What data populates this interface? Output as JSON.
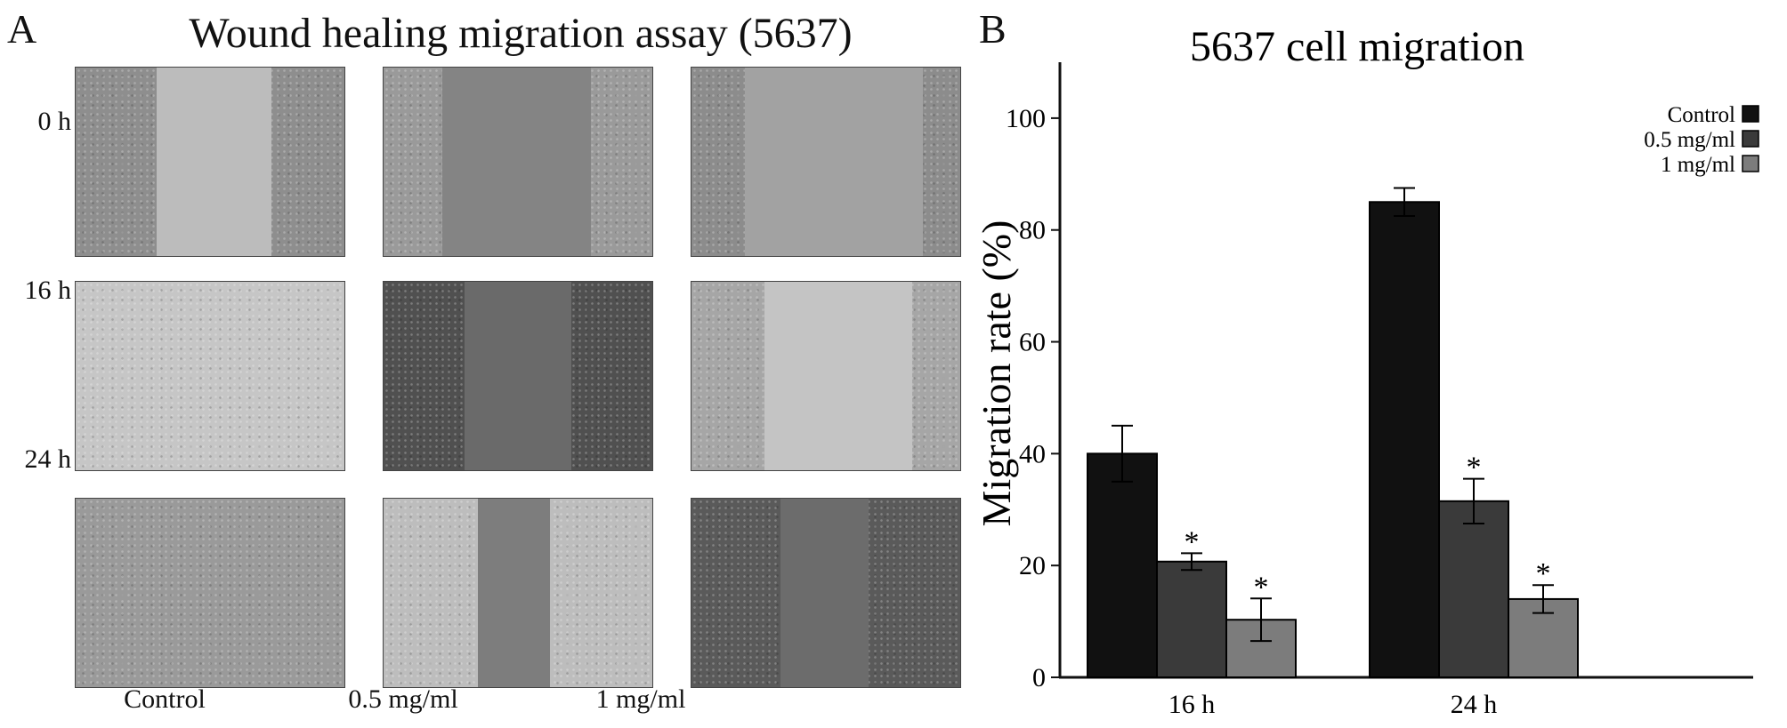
{
  "panel_a": {
    "letter": "A",
    "title": "Wound healing migration assay (5637)",
    "row_labels": [
      "0 h",
      "16 h",
      "24 h"
    ],
    "col_labels": [
      "Control",
      "0.5 mg/ml",
      "1 mg/ml"
    ],
    "images": [
      {
        "bg": "#bcbcbc",
        "edge": "#8e8e8e",
        "gap": [
          0.3,
          0.73
        ]
      },
      {
        "bg": "#848484",
        "edge": "#9a9a9a",
        "gap": [
          0.22,
          0.77
        ]
      },
      {
        "bg": "#a2a2a2",
        "edge": "#8c8c8c",
        "gap": [
          0.2,
          0.86
        ]
      },
      {
        "bg": "#b3b3b3",
        "edge": "#c6c6c6",
        "gap": [
          0.0,
          0.0
        ]
      },
      {
        "bg": "#6a6a6a",
        "edge": "#505050",
        "gap": [
          0.3,
          0.7
        ]
      },
      {
        "bg": "#c4c4c4",
        "edge": "#a6a6a6",
        "gap": [
          0.27,
          0.82
        ]
      },
      {
        "bg": "#8f8f8f",
        "edge": "#9a9a9a",
        "gap": [
          0.0,
          0.0
        ]
      },
      {
        "bg": "#7d7d7d",
        "edge": "#bdbdbd",
        "gap": [
          0.35,
          0.62
        ]
      },
      {
        "bg": "#6c6c6c",
        "edge": "#5a5a5a",
        "gap": [
          0.33,
          0.66
        ]
      }
    ]
  },
  "panel_b": {
    "letter": "B"
  },
  "chart_data": {
    "type": "bar",
    "title": "5637 cell migration",
    "ylabel": "Migration rate (%)",
    "xlabel": "",
    "categories": [
      "16 h",
      "24 h"
    ],
    "ylim": [
      0,
      110
    ],
    "yticks": [
      0,
      20,
      40,
      60,
      80,
      100
    ],
    "legend_position": "top-right",
    "series": [
      {
        "name": "Control",
        "values": [
          40,
          85
        ],
        "errors": [
          5,
          2.5
        ],
        "color": "#111111",
        "sig": [
          "",
          ""
        ]
      },
      {
        "name": "0.5 mg/ml",
        "values": [
          20.7,
          31.5
        ],
        "errors": [
          1.5,
          4
        ],
        "color": "#3a3a3a",
        "sig": [
          "*",
          "*"
        ]
      },
      {
        "name": "1 mg/ml",
        "values": [
          10.3,
          14
        ],
        "errors": [
          3.8,
          2.5
        ],
        "color": "#7c7c7c",
        "sig": [
          "*",
          "*"
        ]
      }
    ]
  }
}
